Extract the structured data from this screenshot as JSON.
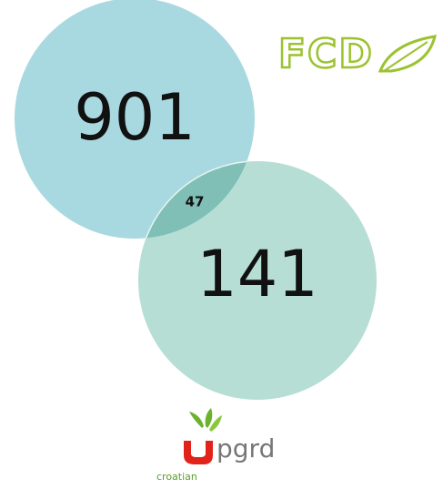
{
  "sets": [
    {
      "value": 901
    },
    {
      "value": 141
    }
  ],
  "intersection": 47,
  "logos": {
    "top": "FCD",
    "bottom": "pgrd",
    "bottom_caption": "croatian"
  }
}
